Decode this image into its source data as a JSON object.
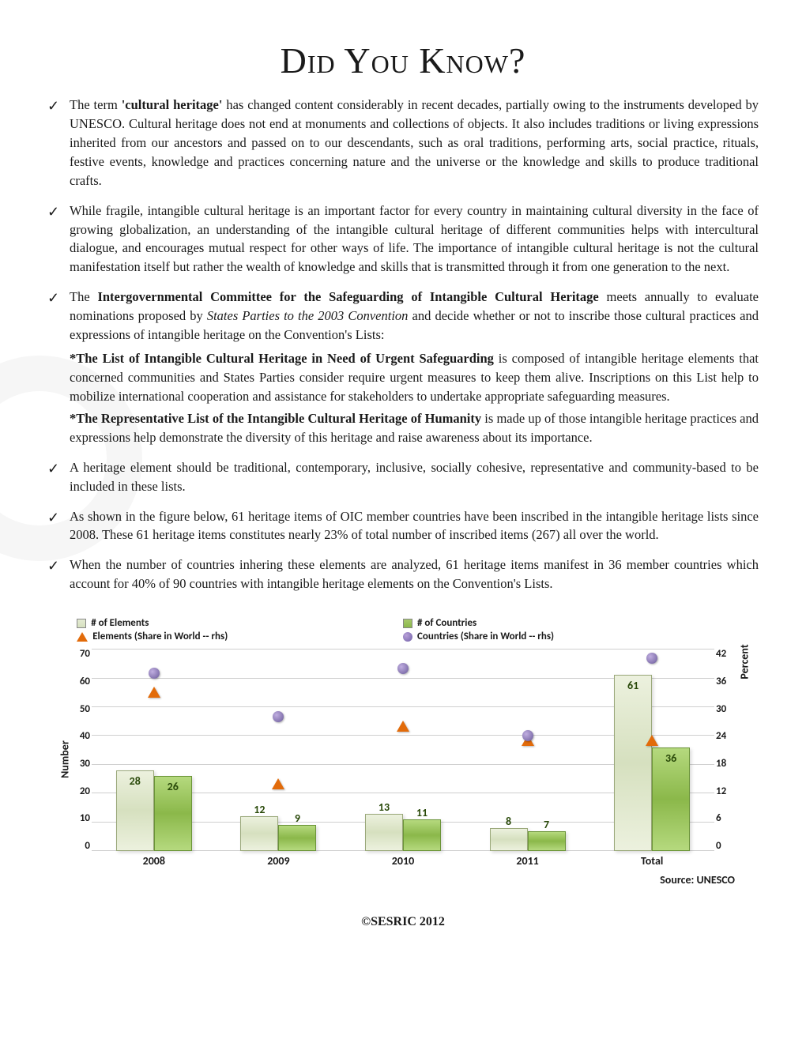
{
  "title": "Did You Know?",
  "bullets": {
    "b1": "The term 'cultural heritage' has changed content considerably in recent decades, partially owing to the instruments developed by UNESCO. Cultural heritage does not end at monuments and collections of objects. It also includes traditions or living expressions inherited from our ancestors and passed on to our descendants, such as oral traditions, performing arts, social practice, rituals, festive events, knowledge and practices concerning nature and the universe or the knowledge and skills to produce traditional crafts.",
    "b2": "While fragile, intangible cultural heritage is an important factor for every country in maintaining cultural diversity in the face of growing globalization, an understanding of the intangible cultural heritage of different communities helps with intercultural dialogue, and encourages mutual respect for other ways of life. The importance of intangible cultural heritage is not the cultural manifestation itself but rather the wealth of knowledge and skills that is transmitted through it from one generation to the next.",
    "b3_pre": "The ",
    "b3_bold": "Intergovernmental Committee for the Safeguarding of Intangible Cultural Heritage",
    "b3_mid": " meets annually to evaluate nominations proposed by ",
    "b3_italic": "States Parties to the 2003 Convention",
    "b3_post": " and decide whether or not to inscribe those cultural practices and expressions of intangible heritage on the Convention's Lists:",
    "b3_s1bold": "*The List of Intangible Cultural Heritage in Need of Urgent Safeguarding",
    "b3_s1text": " is composed of intangible heritage elements that concerned communities and States Parties consider require urgent measures to keep them alive. Inscriptions on this List help to mobilize international cooperation and assistance for stakeholders to undertake appropriate safeguarding measures.",
    "b3_s2bold": "*The Representative List of the Intangible Cultural Heritage of Humanity",
    "b3_s2text": " is made up of those intangible heritage practices and expressions help demonstrate the diversity of this heritage and raise awareness about its importance.",
    "b4": "A heritage element should be traditional, contemporary, inclusive, socially cohesive, representative and community-based to be included in these lists.",
    "b5": "As shown in the figure below, 61 heritage items of OIC member countries have been inscribed in the intangible heritage lists since 2008. These 61 heritage items constitutes nearly 23% of total number of inscribed items (267) all over the world.",
    "b6": "When the number of countries inhering these elements are analyzed, 61 heritage items manifest in 36 member countries which account for 40% of 90 countries with intangible heritage elements on the Convention's Lists."
  },
  "chart": {
    "legend": {
      "elements": "# of Elements",
      "countries": "# of Countries",
      "elshare": "Elements (Share in World -- rhs)",
      "coshare": "Countries (Share in World -- rhs)"
    },
    "yleft": {
      "label": "Number",
      "max": 70,
      "step": 10,
      "ticks": [
        "70",
        "60",
        "50",
        "40",
        "30",
        "20",
        "10",
        "0"
      ]
    },
    "yright": {
      "label": "Percent",
      "max": 42,
      "step": 6,
      "ticks": [
        "42",
        "36",
        "30",
        "24",
        "18",
        "12",
        "6",
        "0"
      ]
    },
    "categories": [
      "2008",
      "2009",
      "2010",
      "2011",
      "Total"
    ],
    "elements_vals": [
      28,
      12,
      13,
      8,
      61
    ],
    "countries_vals": [
      26,
      9,
      11,
      7,
      36
    ],
    "el_share_pct": [
      33,
      14,
      26,
      23,
      23
    ],
    "co_share_pct": [
      37,
      28,
      38,
      24,
      40
    ],
    "colors": {
      "bar_elements": "#d6e0bf",
      "bar_countries": "#8bb84a",
      "triangle": "#e26b0a",
      "circle": "#7060a8",
      "grid": "#cfcfcf",
      "axis": "#888888"
    },
    "source": "Source: UNESCO"
  },
  "footer": "©SESRIC 2012"
}
